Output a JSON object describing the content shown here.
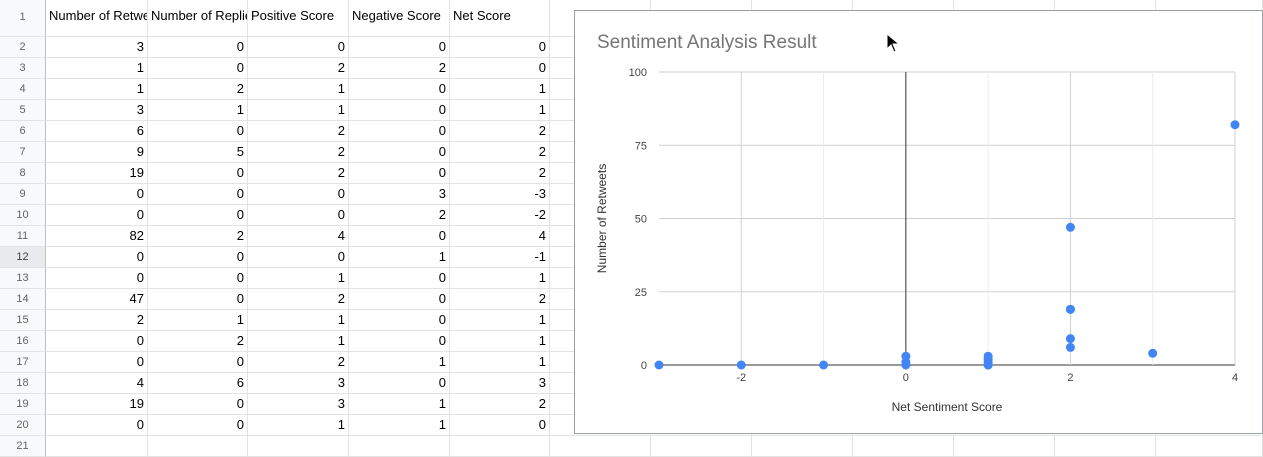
{
  "sheet": {
    "row_numbers": [
      "1",
      "2",
      "3",
      "4",
      "5",
      "6",
      "7",
      "8",
      "9",
      "10",
      "11",
      "12",
      "13",
      "14",
      "15",
      "16",
      "17",
      "18",
      "19",
      "20",
      "21"
    ],
    "headers": [
      "Number of Retweets",
      "Number of Replies",
      "Positive Score",
      "Negative Score",
      "Net Score"
    ],
    "rows": [
      [
        "3",
        "0",
        "0",
        "0",
        "0"
      ],
      [
        "1",
        "0",
        "2",
        "2",
        "0"
      ],
      [
        "1",
        "2",
        "1",
        "0",
        "1"
      ],
      [
        "3",
        "1",
        "1",
        "0",
        "1"
      ],
      [
        "6",
        "0",
        "2",
        "0",
        "2"
      ],
      [
        "9",
        "5",
        "2",
        "0",
        "2"
      ],
      [
        "19",
        "0",
        "2",
        "0",
        "2"
      ],
      [
        "0",
        "0",
        "0",
        "3",
        "-3"
      ],
      [
        "0",
        "0",
        "0",
        "2",
        "-2"
      ],
      [
        "82",
        "2",
        "4",
        "0",
        "4"
      ],
      [
        "0",
        "0",
        "0",
        "1",
        "-1"
      ],
      [
        "0",
        "0",
        "1",
        "0",
        "1"
      ],
      [
        "47",
        "0",
        "2",
        "0",
        "2"
      ],
      [
        "2",
        "1",
        "1",
        "0",
        "1"
      ],
      [
        "0",
        "2",
        "1",
        "0",
        "1"
      ],
      [
        "0",
        "0",
        "2",
        "1",
        "1"
      ],
      [
        "4",
        "6",
        "3",
        "0",
        "3"
      ],
      [
        "19",
        "0",
        "3",
        "1",
        "2"
      ],
      [
        "0",
        "0",
        "1",
        "1",
        "0"
      ]
    ],
    "selected_row": "12"
  },
  "chart_data": {
    "type": "scatter",
    "title": "Sentiment Analysis Result",
    "xlabel": "Net Sentiment Score",
    "ylabel": "Number of Retweets",
    "xlim": [
      -3,
      4
    ],
    "ylim": [
      0,
      100
    ],
    "xticks": [
      "-2",
      "0",
      "2",
      "4"
    ],
    "yticks": [
      "0",
      "25",
      "50",
      "75",
      "100"
    ],
    "grid": true,
    "series": [
      {
        "color": "#4285f4",
        "points": [
          {
            "x": 0,
            "y": 3
          },
          {
            "x": 0,
            "y": 1
          },
          {
            "x": 1,
            "y": 1
          },
          {
            "x": 1,
            "y": 3
          },
          {
            "x": 2,
            "y": 6
          },
          {
            "x": 2,
            "y": 9
          },
          {
            "x": 2,
            "y": 19
          },
          {
            "x": -3,
            "y": 0
          },
          {
            "x": -2,
            "y": 0
          },
          {
            "x": 4,
            "y": 82
          },
          {
            "x": -1,
            "y": 0
          },
          {
            "x": 1,
            "y": 0
          },
          {
            "x": 2,
            "y": 47
          },
          {
            "x": 1,
            "y": 2
          },
          {
            "x": 1,
            "y": 0
          },
          {
            "x": 1,
            "y": 0
          },
          {
            "x": 3,
            "y": 4
          },
          {
            "x": 2,
            "y": 19
          },
          {
            "x": 0,
            "y": 0
          }
        ]
      }
    ]
  }
}
